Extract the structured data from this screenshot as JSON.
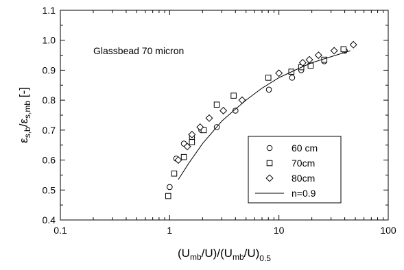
{
  "chart_data": {
    "type": "scatter",
    "xscale": "log",
    "xlim": [
      0.1,
      100
    ],
    "ylim": [
      0.4,
      1.1
    ],
    "xticks": [
      0.1,
      1,
      10,
      100
    ],
    "xtick_labels": [
      "0.1",
      "1",
      "10",
      "100"
    ],
    "yticks": [
      0.4,
      0.5,
      0.6,
      0.7,
      0.8,
      0.9,
      1.0,
      1.1
    ],
    "ytick_labels": [
      "0.4",
      "0.5",
      "0.6",
      "0.7",
      "0.8",
      "0.9",
      "1.0",
      "1.1"
    ],
    "grid": false,
    "legend_position": "bottom-right",
    "annotation": "Glassbead 70 micron",
    "xlabel": {
      "main": "(U",
      "sub1": "mb",
      "mid": "/U)/(U",
      "sub2": "mb",
      "end": "/U)",
      "sub3": "0.5"
    },
    "ylabel": {
      "eps1": "ε",
      "sub1": "s,b",
      "slash": "/",
      "eps2": "ε",
      "sub2": "s,mb",
      "unit": " [-]"
    },
    "series": [
      {
        "name": "60 cm",
        "marker": "circle",
        "points": [
          [
            1.0,
            0.51
          ],
          [
            1.15,
            0.605
          ],
          [
            1.35,
            0.655
          ],
          [
            1.6,
            0.675
          ],
          [
            1.95,
            0.7
          ],
          [
            2.7,
            0.71
          ],
          [
            4.0,
            0.765
          ],
          [
            8.1,
            0.835
          ],
          [
            13.2,
            0.875
          ],
          [
            16.0,
            0.9
          ],
          [
            19.5,
            0.915
          ],
          [
            26.0,
            0.93
          ],
          [
            40.0,
            0.965
          ]
        ]
      },
      {
        "name": "70cm",
        "marker": "square",
        "points": [
          [
            0.97,
            0.48
          ],
          [
            1.1,
            0.555
          ],
          [
            1.35,
            0.61
          ],
          [
            1.6,
            0.66
          ],
          [
            2.05,
            0.7
          ],
          [
            2.7,
            0.785
          ],
          [
            3.85,
            0.815
          ],
          [
            8.0,
            0.875
          ],
          [
            13.0,
            0.895
          ],
          [
            16.0,
            0.91
          ],
          [
            19.5,
            0.915
          ],
          [
            26.0,
            0.935
          ],
          [
            39.0,
            0.97
          ]
        ]
      },
      {
        "name": "80cm",
        "marker": "diamond",
        "points": [
          [
            1.2,
            0.6
          ],
          [
            1.45,
            0.645
          ],
          [
            1.6,
            0.685
          ],
          [
            1.9,
            0.71
          ],
          [
            2.3,
            0.74
          ],
          [
            3.1,
            0.765
          ],
          [
            4.6,
            0.8
          ],
          [
            10.0,
            0.89
          ],
          [
            16.5,
            0.925
          ],
          [
            19.0,
            0.935
          ],
          [
            23.0,
            0.95
          ],
          [
            32.0,
            0.965
          ],
          [
            48.0,
            0.985
          ]
        ]
      },
      {
        "name": "n=0.9",
        "marker": "line",
        "points": [
          [
            1.2,
            0.535
          ],
          [
            1.5,
            0.59
          ],
          [
            2.0,
            0.655
          ],
          [
            3.0,
            0.73
          ],
          [
            4.0,
            0.77
          ],
          [
            5.0,
            0.8
          ],
          [
            7.0,
            0.84
          ],
          [
            10.0,
            0.875
          ],
          [
            15.0,
            0.905
          ],
          [
            20.0,
            0.925
          ],
          [
            30.0,
            0.945
          ],
          [
            45.0,
            0.965
          ]
        ]
      }
    ]
  }
}
